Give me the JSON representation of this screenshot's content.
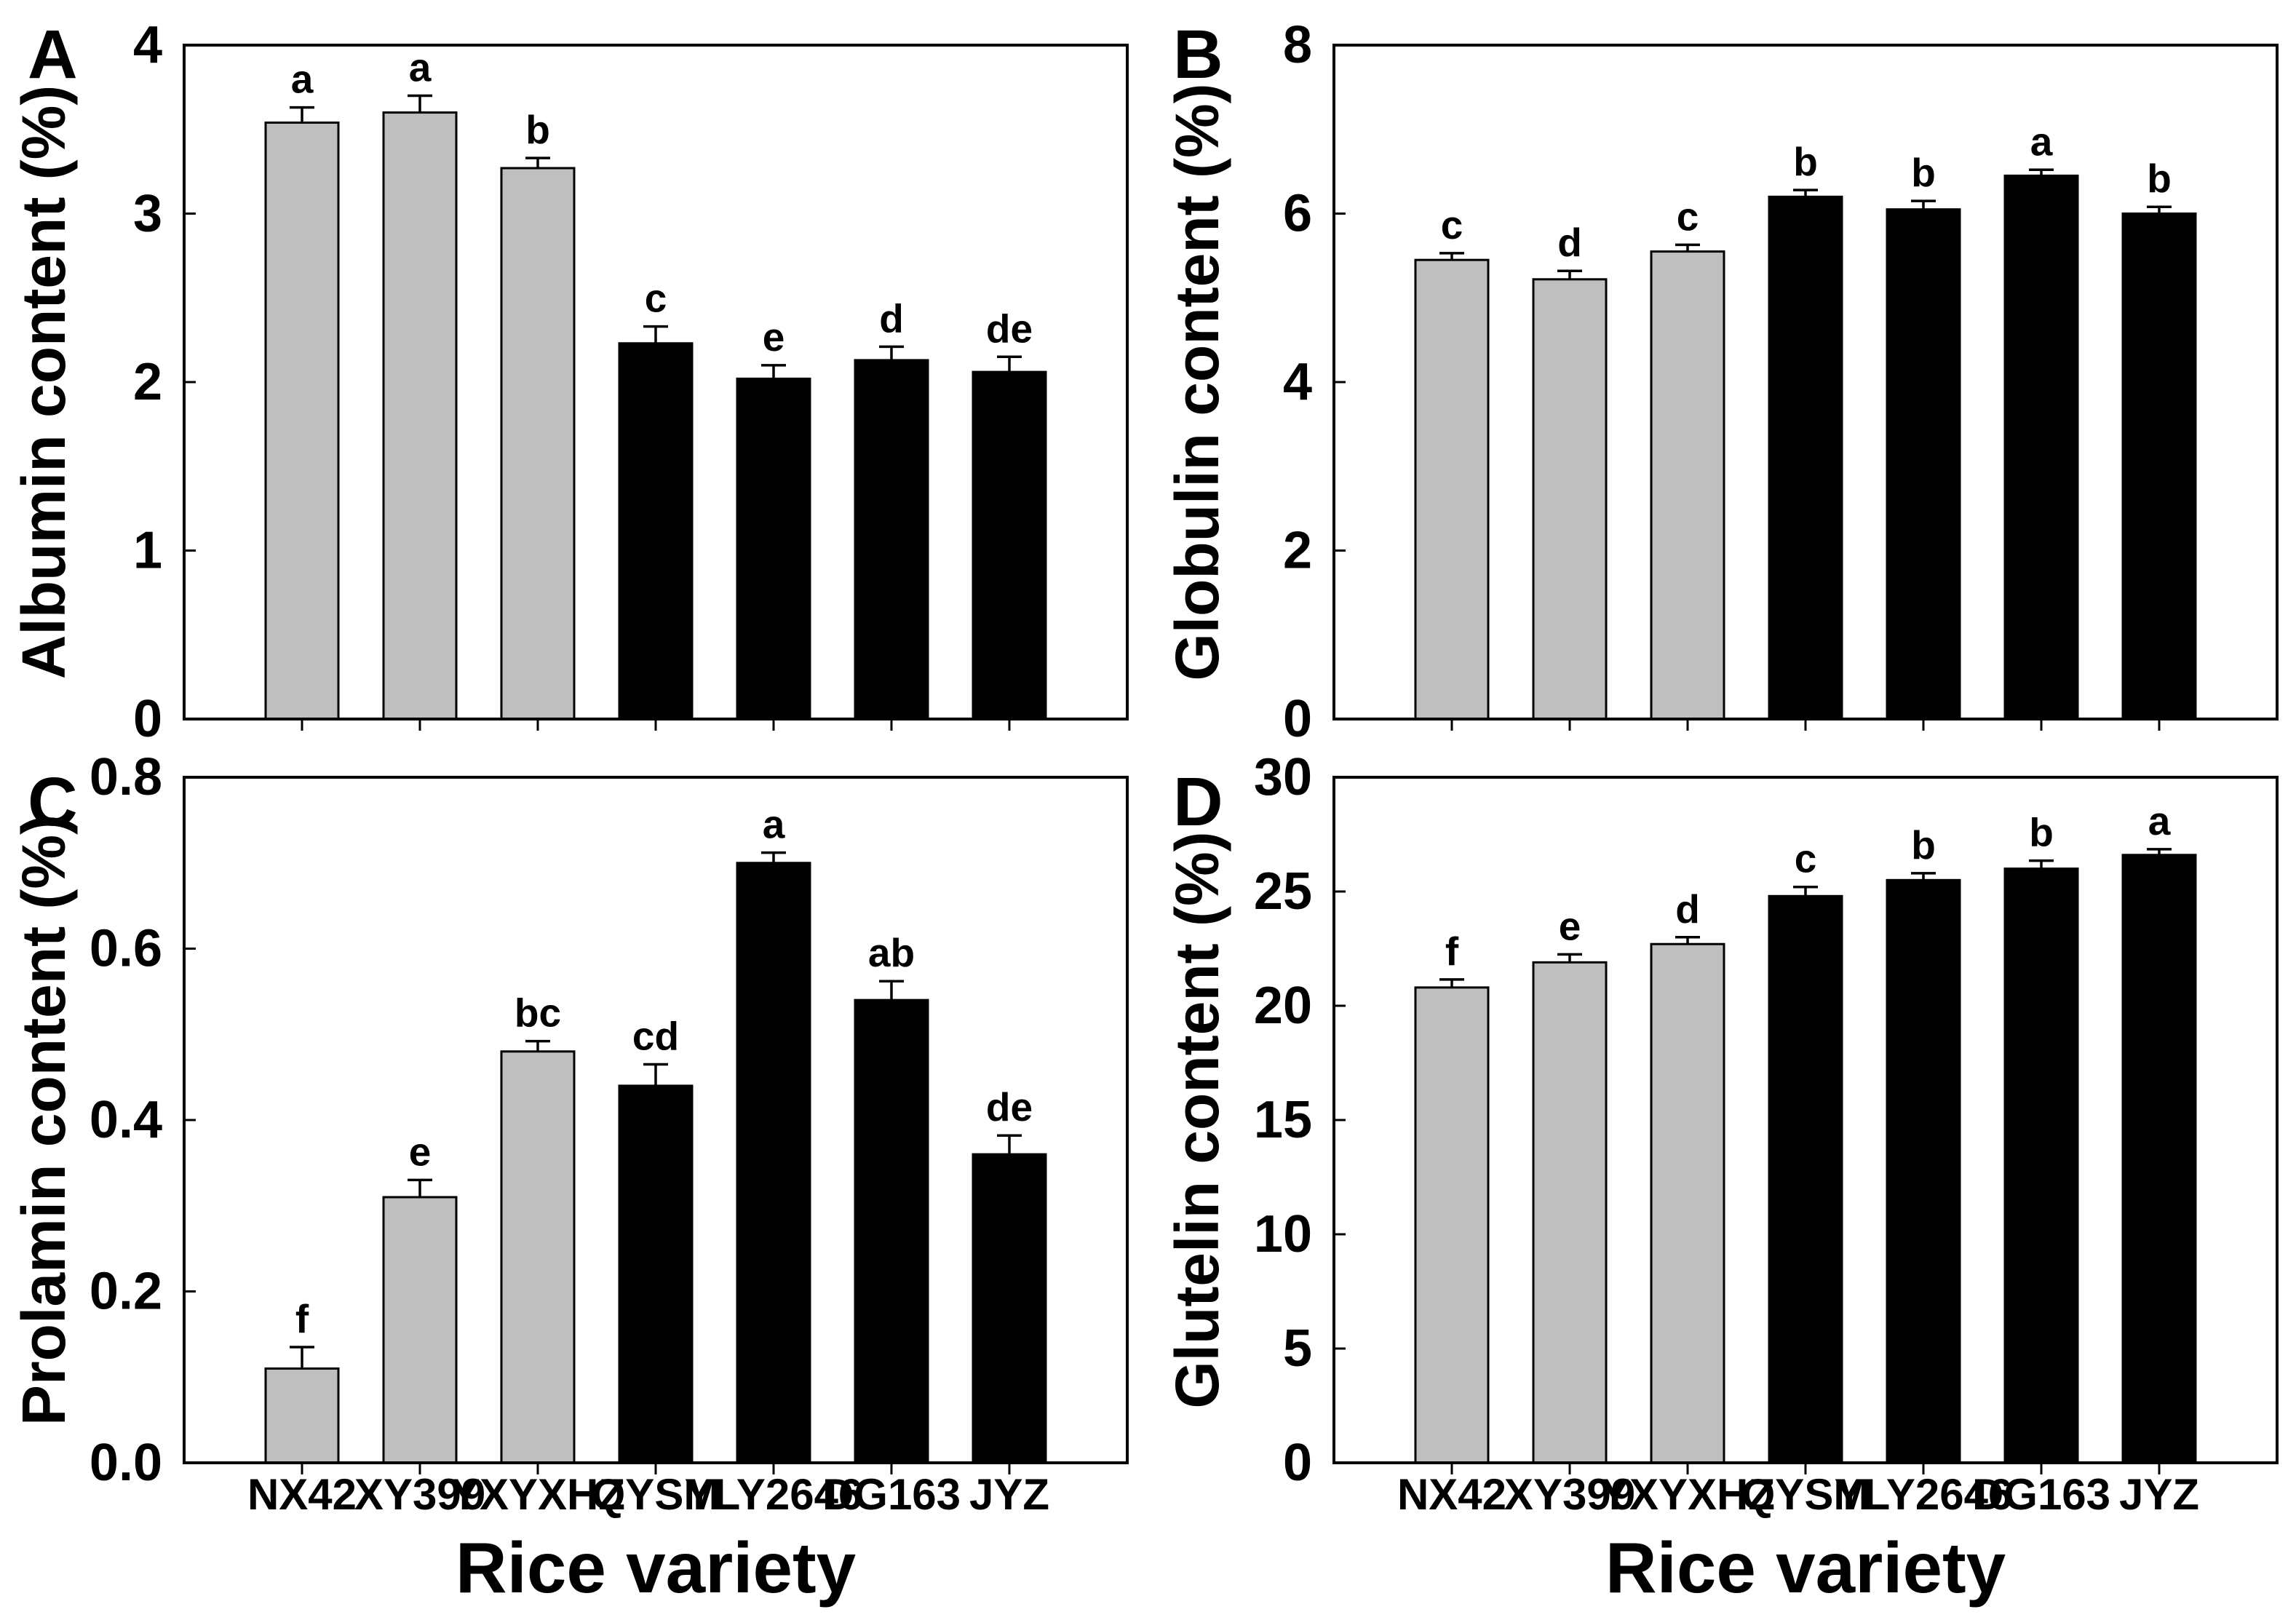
{
  "style": {
    "background": "#ffffff",
    "text_color": "#000000",
    "axis_color": "#000000",
    "gray_fill": "#bfbfbf",
    "black_fill": "#000000",
    "bar_edge": "#000000"
  },
  "chart_data": [
    {
      "panel": "A",
      "type": "bar",
      "ylabel": "Albumin content (%)",
      "xlabel": "Rice variety",
      "categories": [
        "NX42",
        "XY399",
        "YXYXHZ",
        "QYSM",
        "YLY2646",
        "DG163",
        "JYZ"
      ],
      "values": [
        3.54,
        3.6,
        3.27,
        2.23,
        2.02,
        2.13,
        2.06
      ],
      "errors": [
        0.09,
        0.1,
        0.06,
        0.1,
        0.08,
        0.08,
        0.09
      ],
      "sig_letters": [
        "a",
        "a",
        "b",
        "c",
        "e",
        "d",
        "de"
      ],
      "ylim": [
        0,
        4
      ],
      "yticks": [
        0,
        1,
        2,
        3,
        4
      ],
      "ytick_labels": [
        "0",
        "1",
        "2",
        "3",
        "4"
      ],
      "bar_colors": [
        "gray",
        "gray",
        "gray",
        "black",
        "black",
        "black",
        "black"
      ],
      "show_x_labels": false,
      "grid": false,
      "legend": "none"
    },
    {
      "panel": "B",
      "type": "bar",
      "ylabel": "Globulin content (%)",
      "xlabel": "Rice variety",
      "categories": [
        "NX42",
        "XY399",
        "YXYXHZ",
        "QYSM",
        "YLY2646",
        "DG163",
        "JYZ"
      ],
      "values": [
        5.45,
        5.22,
        5.55,
        6.2,
        6.05,
        6.45,
        6.0
      ],
      "errors": [
        0.08,
        0.1,
        0.08,
        0.08,
        0.1,
        0.07,
        0.08
      ],
      "sig_letters": [
        "c",
        "d",
        "c",
        "b",
        "b",
        "a",
        "b"
      ],
      "ylim": [
        0,
        8
      ],
      "yticks": [
        0,
        2,
        4,
        6,
        8
      ],
      "ytick_labels": [
        "0",
        "2",
        "4",
        "6",
        "8"
      ],
      "bar_colors": [
        "gray",
        "gray",
        "gray",
        "black",
        "black",
        "black",
        "black"
      ],
      "show_x_labels": false,
      "grid": false,
      "legend": "none"
    },
    {
      "panel": "C",
      "type": "bar",
      "ylabel": "Prolamin content (%)",
      "xlabel": "Rice variety",
      "categories": [
        "NX42",
        "XY399",
        "YXYXHZ",
        "QYSM",
        "YLY2646",
        "DG163",
        "JYZ"
      ],
      "values": [
        0.11,
        0.31,
        0.48,
        0.44,
        0.7,
        0.54,
        0.36
      ],
      "errors": [
        0.025,
        0.02,
        0.012,
        0.025,
        0.012,
        0.022,
        0.022
      ],
      "sig_letters": [
        "f",
        "e",
        "bc",
        "cd",
        "a",
        "ab",
        "de"
      ],
      "ylim": [
        0,
        0.8
      ],
      "yticks": [
        0,
        0.2,
        0.4,
        0.6,
        0.8
      ],
      "ytick_labels": [
        "0.0",
        "0.2",
        "0.4",
        "0.6",
        "0.8"
      ],
      "bar_colors": [
        "gray",
        "gray",
        "gray",
        "black",
        "black",
        "black",
        "black"
      ],
      "show_x_labels": true,
      "grid": false,
      "legend": "none"
    },
    {
      "panel": "D",
      "type": "bar",
      "ylabel": "Glutelin content (%)",
      "xlabel": "Rice variety",
      "categories": [
        "NX42",
        "XY399",
        "YXYXHZ",
        "QYSM",
        "YLY2646",
        "DG163",
        "JYZ"
      ],
      "values": [
        20.8,
        21.9,
        22.7,
        24.8,
        25.5,
        26.0,
        26.6
      ],
      "errors": [
        0.35,
        0.35,
        0.3,
        0.4,
        0.3,
        0.35,
        0.25
      ],
      "sig_letters": [
        "f",
        "e",
        "d",
        "c",
        "b",
        "b",
        "a"
      ],
      "ylim": [
        0,
        30
      ],
      "yticks": [
        0,
        5,
        10,
        15,
        20,
        25,
        30
      ],
      "ytick_labels": [
        "0",
        "5",
        "10",
        "15",
        "20",
        "25",
        "30"
      ],
      "bar_colors": [
        "gray",
        "gray",
        "gray",
        "black",
        "black",
        "black",
        "black"
      ],
      "show_x_labels": true,
      "grid": false,
      "legend": "none"
    }
  ]
}
